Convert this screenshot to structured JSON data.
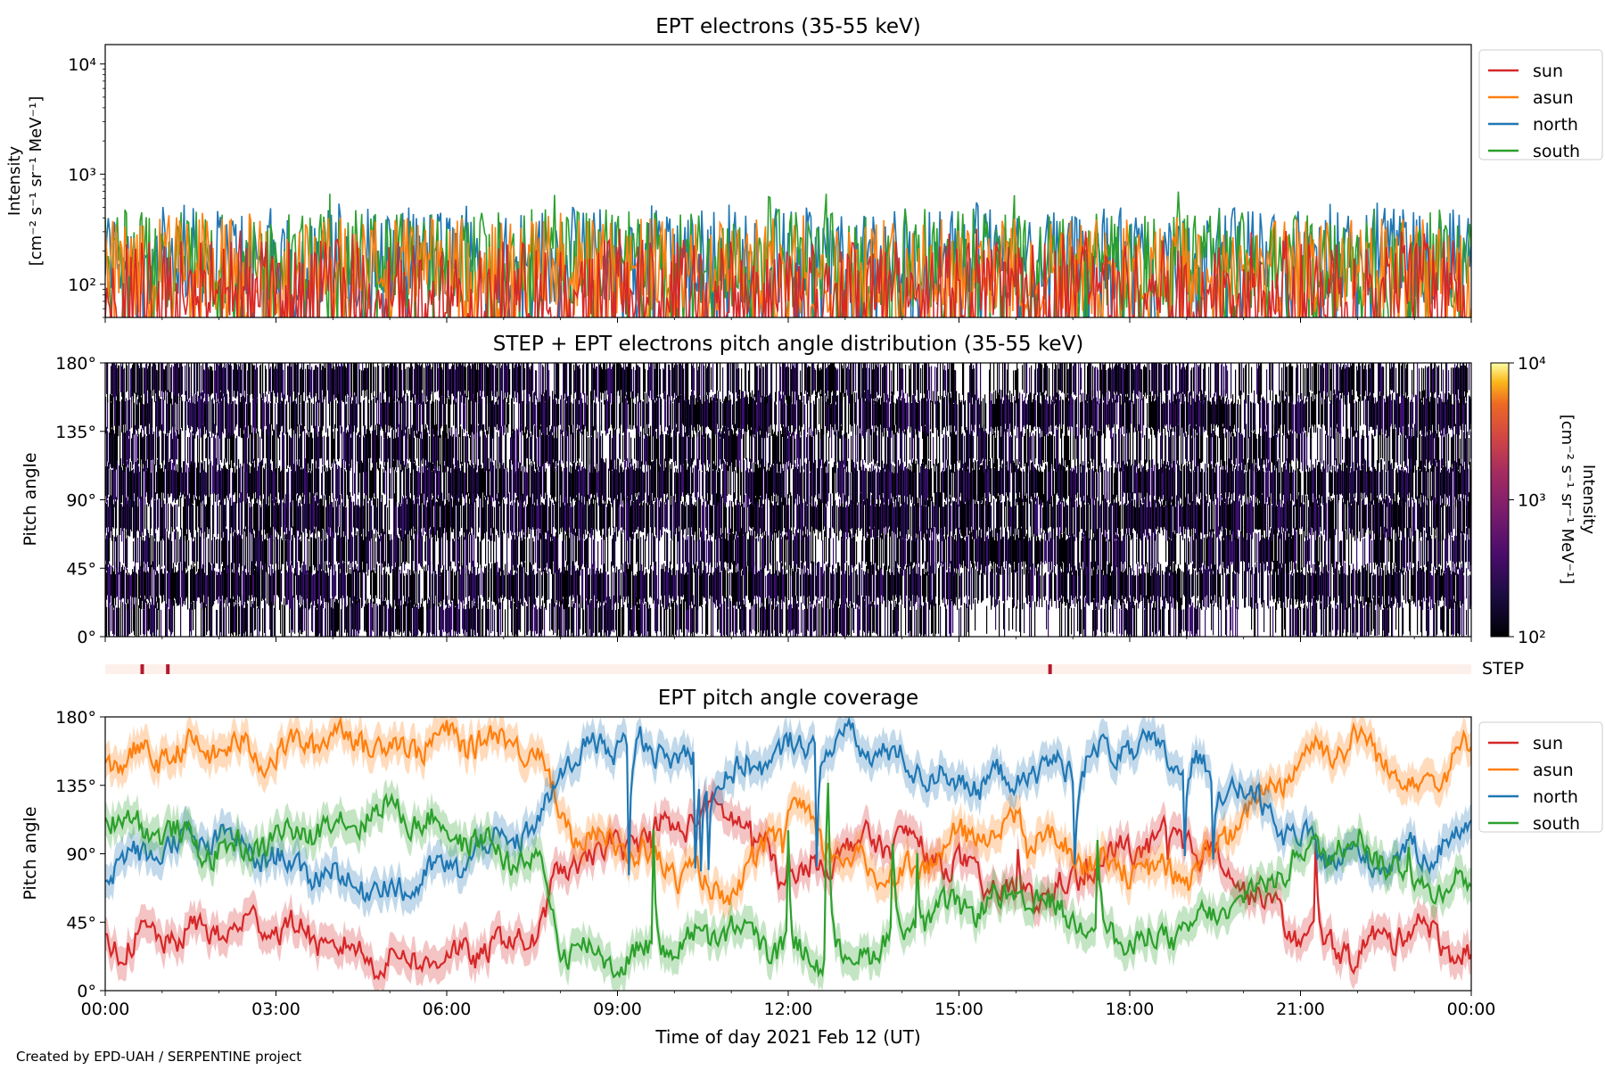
{
  "chart_data": [
    {
      "type": "line",
      "title": "EPT electrons (35-55 keV)",
      "ylabel": "Intensity",
      "yunit": "[cm⁻² s⁻¹ sr⁻¹ MeV⁻¹]",
      "yscale": "log",
      "ylim": [
        50,
        15000
      ],
      "yticks": [
        {
          "value": 100,
          "label": "10²"
        },
        {
          "value": 1000,
          "label": "10³"
        },
        {
          "value": 10000,
          "label": "10⁴"
        }
      ],
      "x_range_hours": [
        0,
        24
      ],
      "legend": "right-top",
      "series": [
        {
          "name": "sun",
          "color": "#d62728",
          "typical": 100,
          "max": 320
        },
        {
          "name": "asun",
          "color": "#ff7f0e",
          "typical": 160,
          "max": 450
        },
        {
          "name": "north",
          "color": "#1f77b4",
          "typical": 200,
          "max": 560
        },
        {
          "name": "south",
          "color": "#2ca02c",
          "typical": 190,
          "max": 700
        }
      ]
    },
    {
      "type": "heatmap",
      "title": "STEP + EPT electrons pitch angle distribution (35-55 keV)",
      "ylabel": "Pitch angle",
      "ylim": [
        0,
        180
      ],
      "yticks": [
        "0°",
        "45°",
        "90°",
        "135°",
        "180°"
      ],
      "colorbar": {
        "label": "Intensity",
        "unit": "[cm⁻² s⁻¹ sr⁻¹ MeV⁻¹]",
        "scale": "log",
        "range": [
          100,
          10000
        ],
        "ticks": [
          {
            "value": 100,
            "label": "10²"
          },
          {
            "value": 1000,
            "label": "10³"
          },
          {
            "value": 10000,
            "label": "10⁴"
          }
        ],
        "colormap": "inferno"
      },
      "typical_intensity": 180
    },
    {
      "type": "table",
      "label": "STEP",
      "step_marks_hours": [
        0.65,
        1.1,
        16.6
      ],
      "colors": {
        "bar": "#fdf0ea",
        "mark": "#b2182b"
      }
    },
    {
      "type": "line",
      "title": "EPT pitch angle coverage",
      "ylabel": "Pitch angle",
      "ylim": [
        0,
        180
      ],
      "yticks": [
        "0°",
        "45°",
        "90°",
        "135°",
        "180°"
      ],
      "x_range_hours": [
        0,
        24
      ],
      "legend": "right-top",
      "series": [
        {
          "name": "sun",
          "color": "#d62728",
          "x": [
            0,
            1,
            2,
            3,
            4,
            5,
            6,
            7,
            7.6,
            8,
            9,
            10,
            11,
            12,
            13,
            14,
            15,
            16,
            17,
            18,
            19,
            20,
            21,
            22,
            23,
            24
          ],
          "y": [
            30,
            35,
            40,
            45,
            28,
            20,
            22,
            30,
            40,
            80,
            95,
            110,
            120,
            70,
            95,
            100,
            80,
            60,
            70,
            95,
            100,
            70,
            35,
            25,
            45,
            20
          ]
        },
        {
          "name": "asun",
          "color": "#ff7f0e",
          "x": [
            0,
            1,
            2,
            3,
            4,
            5,
            6,
            7,
            7.6,
            8,
            9,
            10,
            11,
            12,
            13,
            14,
            15,
            16,
            17,
            18,
            19,
            20,
            21,
            22,
            23,
            24
          ],
          "y": [
            150,
            155,
            160,
            155,
            170,
            160,
            165,
            165,
            160,
            110,
            95,
            80,
            60,
            120,
            85,
            75,
            100,
            110,
            90,
            80,
            75,
            115,
            155,
            165,
            135,
            160
          ]
        },
        {
          "name": "north",
          "color": "#1f77b4",
          "x": [
            0,
            1,
            2,
            3,
            4,
            5,
            6,
            7,
            7.6,
            8,
            9,
            10,
            11,
            12,
            13,
            14,
            15,
            16,
            17,
            18,
            19,
            20,
            21,
            22,
            23,
            24
          ],
          "y": [
            80,
            95,
            100,
            85,
            75,
            65,
            80,
            100,
            105,
            150,
            165,
            155,
            140,
            160,
            165,
            150,
            135,
            140,
            150,
            160,
            150,
            130,
            95,
            85,
            90,
            105
          ]
        },
        {
          "name": "south",
          "color": "#2ca02c",
          "x": [
            0,
            1,
            2,
            3,
            4,
            5,
            6,
            7,
            7.6,
            8,
            9,
            10,
            11,
            12,
            13,
            14,
            15,
            16,
            17,
            18,
            19,
            20,
            21,
            22,
            23,
            24
          ],
          "y": [
            115,
            105,
            90,
            100,
            110,
            120,
            105,
            90,
            80,
            30,
            20,
            30,
            40,
            25,
            20,
            40,
            55,
            60,
            50,
            30,
            40,
            60,
            90,
            100,
            70,
            70
          ]
        }
      ]
    }
  ],
  "xaxis": {
    "label": "Time of day 2021 Feb 12 (UT)",
    "ticks": [
      "00:00",
      "03:00",
      "06:00",
      "09:00",
      "12:00",
      "15:00",
      "18:00",
      "21:00",
      "00:00"
    ]
  },
  "credit": "Created by EPD-UAH / SERPENTINE project"
}
